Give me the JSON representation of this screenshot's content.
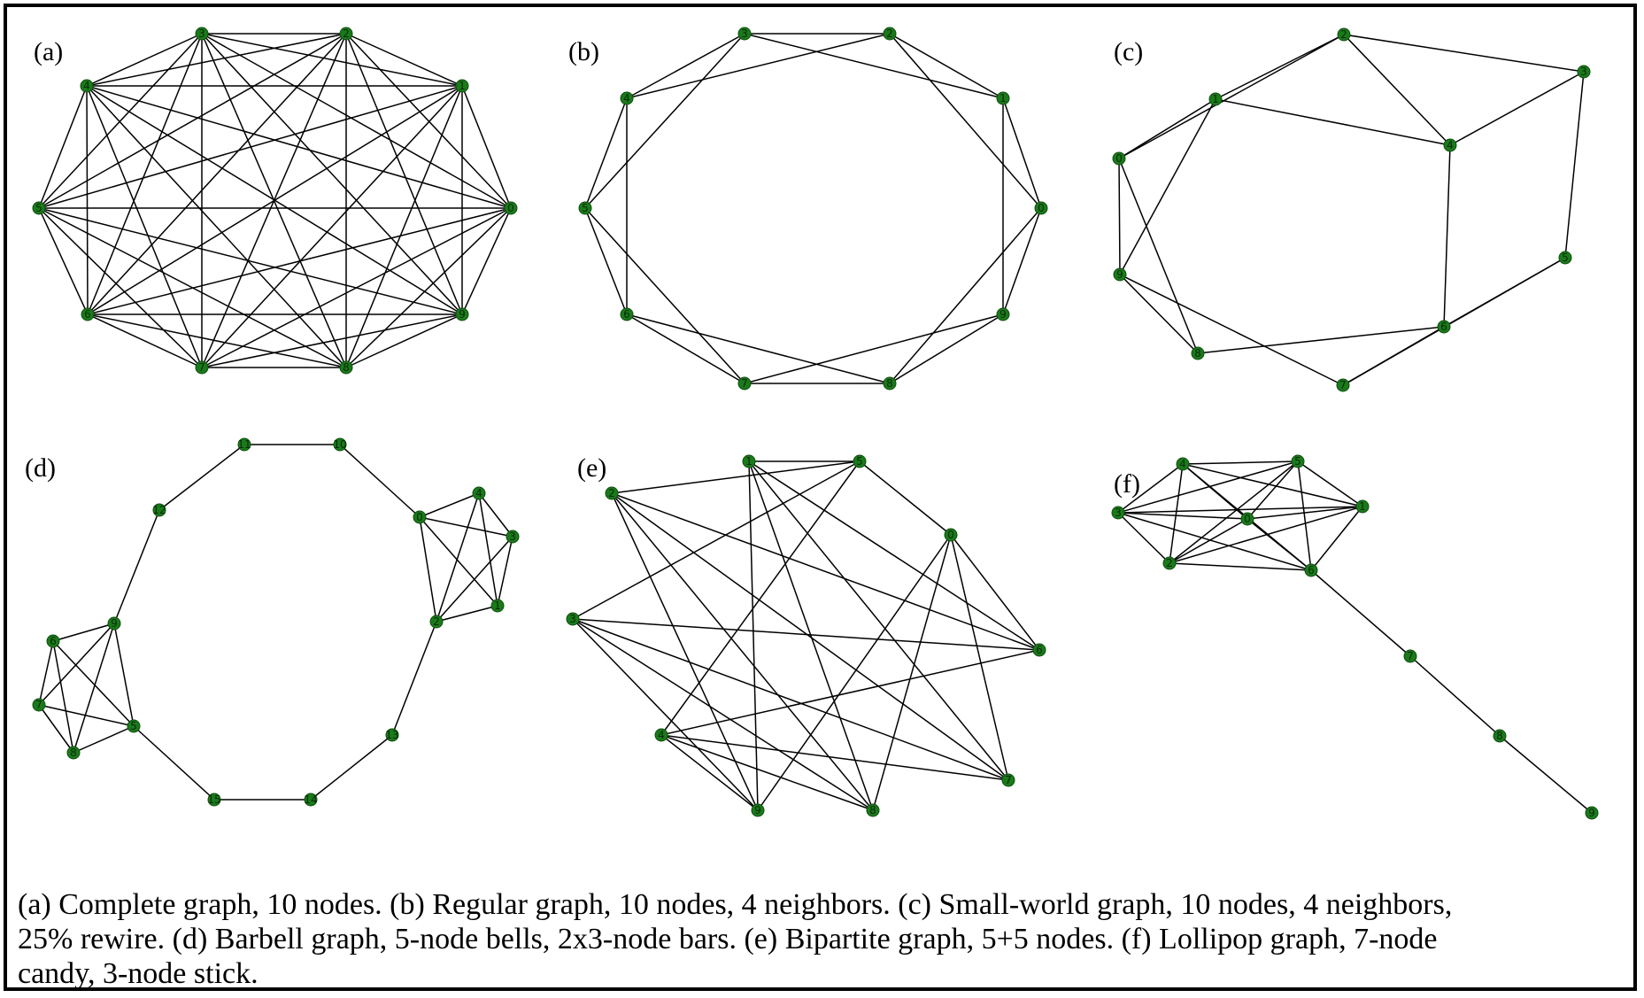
{
  "node_color": "#1a7a1a",
  "edge_color": "#000000",
  "caption": {
    "line1": "(a) Complete graph, 10 nodes. (b) Regular graph, 10 nodes, 4 neighbors. (c) Small-world graph, 10 nodes, 4 neighbors,",
    "line2": "25% rewire. (d) Barbell graph, 5-node bells, 2x3-node bars. (e) Bipartite graph, 5+5 nodes. (f) Lollipop graph, 7-node",
    "line3": "candy, 3-node stick."
  },
  "panels": [
    {
      "id": "a",
      "label": "(a)",
      "nodes": [
        "0",
        "1",
        "2",
        "3",
        "4",
        "5",
        "6",
        "7",
        "8",
        "9"
      ],
      "edges": [
        [
          "0",
          "1"
        ],
        [
          "0",
          "2"
        ],
        [
          "0",
          "3"
        ],
        [
          "0",
          "4"
        ],
        [
          "0",
          "5"
        ],
        [
          "0",
          "6"
        ],
        [
          "0",
          "7"
        ],
        [
          "0",
          "8"
        ],
        [
          "0",
          "9"
        ],
        [
          "1",
          "2"
        ],
        [
          "1",
          "3"
        ],
        [
          "1",
          "4"
        ],
        [
          "1",
          "5"
        ],
        [
          "1",
          "6"
        ],
        [
          "1",
          "7"
        ],
        [
          "1",
          "8"
        ],
        [
          "1",
          "9"
        ],
        [
          "2",
          "3"
        ],
        [
          "2",
          "4"
        ],
        [
          "2",
          "5"
        ],
        [
          "2",
          "6"
        ],
        [
          "2",
          "7"
        ],
        [
          "2",
          "8"
        ],
        [
          "2",
          "9"
        ],
        [
          "3",
          "4"
        ],
        [
          "3",
          "5"
        ],
        [
          "3",
          "6"
        ],
        [
          "3",
          "7"
        ],
        [
          "3",
          "8"
        ],
        [
          "3",
          "9"
        ],
        [
          "4",
          "5"
        ],
        [
          "4",
          "6"
        ],
        [
          "4",
          "7"
        ],
        [
          "4",
          "8"
        ],
        [
          "4",
          "9"
        ],
        [
          "5",
          "6"
        ],
        [
          "5",
          "7"
        ],
        [
          "5",
          "8"
        ],
        [
          "5",
          "9"
        ],
        [
          "6",
          "7"
        ],
        [
          "6",
          "8"
        ],
        [
          "6",
          "9"
        ],
        [
          "7",
          "8"
        ],
        [
          "7",
          "9"
        ],
        [
          "8",
          "9"
        ]
      ]
    },
    {
      "id": "b",
      "label": "(b)",
      "nodes": [
        "0",
        "1",
        "2",
        "3",
        "4",
        "5",
        "6",
        "7",
        "8",
        "9"
      ],
      "edges": [
        [
          "0",
          "1"
        ],
        [
          "0",
          "2"
        ],
        [
          "1",
          "2"
        ],
        [
          "1",
          "3"
        ],
        [
          "2",
          "3"
        ],
        [
          "2",
          "4"
        ],
        [
          "3",
          "4"
        ],
        [
          "3",
          "5"
        ],
        [
          "4",
          "5"
        ],
        [
          "4",
          "6"
        ],
        [
          "5",
          "6"
        ],
        [
          "5",
          "7"
        ],
        [
          "6",
          "7"
        ],
        [
          "6",
          "8"
        ],
        [
          "7",
          "8"
        ],
        [
          "7",
          "9"
        ],
        [
          "8",
          "9"
        ],
        [
          "8",
          "0"
        ],
        [
          "9",
          "0"
        ],
        [
          "9",
          "1"
        ]
      ]
    },
    {
      "id": "c",
      "label": "(c)",
      "nodes": [
        "0",
        "1",
        "2",
        "3",
        "4",
        "5",
        "6",
        "7",
        "8",
        "9"
      ],
      "edges": [
        [
          "1",
          "2"
        ],
        [
          "2",
          "3"
        ],
        [
          "2",
          "4"
        ],
        [
          "1",
          "4"
        ],
        [
          "3",
          "4"
        ],
        [
          "3",
          "5"
        ],
        [
          "4",
          "6"
        ],
        [
          "5",
          "6"
        ],
        [
          "5",
          "7"
        ],
        [
          "6",
          "7"
        ],
        [
          "6",
          "8"
        ],
        [
          "8",
          "9"
        ],
        [
          "7",
          "9"
        ],
        [
          "9",
          "0"
        ],
        [
          "8",
          "0"
        ],
        [
          "0",
          "1"
        ],
        [
          "0",
          "2"
        ],
        [
          "9",
          "1"
        ],
        [
          "6",
          "7"
        ]
      ]
    },
    {
      "id": "d",
      "label": "(d)",
      "nodes": [
        "0",
        "1",
        "2",
        "3",
        "4",
        "5",
        "6",
        "7",
        "8",
        "9",
        "10",
        "11",
        "12",
        "13",
        "14",
        "15"
      ],
      "edges": [
        [
          "0",
          "1"
        ],
        [
          "0",
          "2"
        ],
        [
          "0",
          "3"
        ],
        [
          "0",
          "4"
        ],
        [
          "1",
          "2"
        ],
        [
          "1",
          "3"
        ],
        [
          "1",
          "4"
        ],
        [
          "2",
          "3"
        ],
        [
          "2",
          "4"
        ],
        [
          "3",
          "4"
        ],
        [
          "5",
          "6"
        ],
        [
          "5",
          "7"
        ],
        [
          "5",
          "8"
        ],
        [
          "5",
          "9"
        ],
        [
          "6",
          "7"
        ],
        [
          "6",
          "8"
        ],
        [
          "6",
          "9"
        ],
        [
          "7",
          "8"
        ],
        [
          "7",
          "9"
        ],
        [
          "8",
          "9"
        ],
        [
          "0",
          "10"
        ],
        [
          "10",
          "11"
        ],
        [
          "11",
          "12"
        ],
        [
          "12",
          "9"
        ],
        [
          "2",
          "13"
        ],
        [
          "13",
          "14"
        ],
        [
          "14",
          "15"
        ],
        [
          "15",
          "5"
        ]
      ]
    },
    {
      "id": "e",
      "label": "(e)",
      "nodes": [
        "0",
        "1",
        "2",
        "3",
        "4",
        "5",
        "6",
        "7",
        "8",
        "9"
      ],
      "edges": [
        [
          "0",
          "5"
        ],
        [
          "0",
          "6"
        ],
        [
          "0",
          "7"
        ],
        [
          "0",
          "8"
        ],
        [
          "0",
          "9"
        ],
        [
          "1",
          "5"
        ],
        [
          "1",
          "6"
        ],
        [
          "1",
          "7"
        ],
        [
          "1",
          "8"
        ],
        [
          "1",
          "9"
        ],
        [
          "2",
          "5"
        ],
        [
          "2",
          "6"
        ],
        [
          "2",
          "7"
        ],
        [
          "2",
          "8"
        ],
        [
          "2",
          "9"
        ],
        [
          "3",
          "5"
        ],
        [
          "3",
          "6"
        ],
        [
          "3",
          "7"
        ],
        [
          "3",
          "8"
        ],
        [
          "3",
          "9"
        ],
        [
          "4",
          "5"
        ],
        [
          "4",
          "6"
        ],
        [
          "4",
          "7"
        ],
        [
          "4",
          "8"
        ],
        [
          "4",
          "9"
        ]
      ]
    },
    {
      "id": "f",
      "label": "(f)",
      "nodes": [
        "0",
        "1",
        "2",
        "3",
        "4",
        "5",
        "6",
        "7",
        "8",
        "9"
      ],
      "edges": [
        [
          "0",
          "1"
        ],
        [
          "0",
          "2"
        ],
        [
          "0",
          "3"
        ],
        [
          "0",
          "4"
        ],
        [
          "0",
          "5"
        ],
        [
          "0",
          "6"
        ],
        [
          "1",
          "2"
        ],
        [
          "1",
          "3"
        ],
        [
          "1",
          "4"
        ],
        [
          "1",
          "5"
        ],
        [
          "1",
          "6"
        ],
        [
          "2",
          "3"
        ],
        [
          "2",
          "4"
        ],
        [
          "2",
          "5"
        ],
        [
          "2",
          "6"
        ],
        [
          "3",
          "4"
        ],
        [
          "3",
          "5"
        ],
        [
          "3",
          "6"
        ],
        [
          "4",
          "5"
        ],
        [
          "4",
          "6"
        ],
        [
          "5",
          "6"
        ],
        [
          "6",
          "7"
        ],
        [
          "7",
          "8"
        ],
        [
          "8",
          "9"
        ]
      ]
    }
  ]
}
